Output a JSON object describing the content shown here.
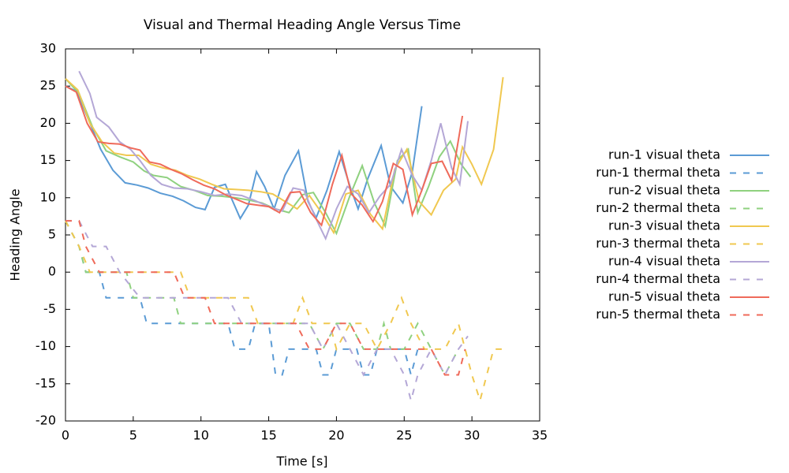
{
  "chart_data": {
    "type": "line",
    "title": "Visual and Thermal Heading Angle Versus Time",
    "x_label": "Time [s]",
    "y_label": "Heading Angle",
    "xlim": [
      0,
      35
    ],
    "xticks": [
      0,
      5,
      10,
      15,
      20,
      25,
      30,
      35
    ],
    "ylim": [
      -20,
      30
    ],
    "yticks": [
      -20,
      -15,
      -10,
      -5,
      0,
      5,
      10,
      15,
      20,
      25,
      30
    ],
    "legend": "right",
    "series": [
      {
        "name": "run-1 visual theta",
        "color": "#5b9bd5",
        "dash": false,
        "x": [
          0,
          0.8,
          1.7,
          2.6,
          3.5,
          4.4,
          5.3,
          6.1,
          7,
          7.9,
          8.7,
          9.6,
          10.3,
          11,
          11.8,
          12.9,
          13.5,
          14.1,
          14.7,
          15.4,
          16.2,
          17.2,
          17.9,
          18.5,
          19.3,
          20.2,
          21,
          21.6,
          22.3,
          23.3,
          24,
          24.9,
          25.6,
          26.3
        ],
        "values": [
          25,
          24.3,
          20.5,
          16.5,
          13.7,
          12,
          11.7,
          11.3,
          10.6,
          10.2,
          9.6,
          8.7,
          8.4,
          11.4,
          11.8,
          7.2,
          9,
          13.5,
          11.5,
          8.5,
          13,
          16.3,
          9.5,
          7.3,
          11,
          16.2,
          11.5,
          8.5,
          12.5,
          17,
          11.5,
          9.3,
          13.5,
          22.3
        ]
      },
      {
        "name": "run-1 thermal theta",
        "color": "#5b9bd5",
        "dash": true,
        "x": [
          0,
          1,
          1.5,
          2.5,
          3,
          5.5,
          6,
          12,
          12.5,
          13.5,
          14,
          15,
          15.5,
          16,
          16.5,
          18.5,
          19,
          19.5,
          20,
          21.5,
          22,
          22.5,
          23,
          25,
          25.5,
          26
        ],
        "values": [
          6.9,
          3.45,
          0,
          0,
          -3.45,
          -3.45,
          -6.9,
          -6.9,
          -10.35,
          -10.35,
          -6.9,
          -6.9,
          -13.8,
          -13.8,
          -10.35,
          -10.35,
          -13.8,
          -13.8,
          -10.35,
          -10.35,
          -13.8,
          -13.8,
          -10.35,
          -10.35,
          -13.8,
          -10.35
        ]
      },
      {
        "name": "run-2 visual theta",
        "color": "#8fd17f",
        "dash": false,
        "x": [
          0,
          1,
          2,
          3,
          4,
          5,
          5.8,
          6.5,
          7.5,
          8.5,
          9.5,
          10.5,
          11.5,
          12.5,
          13.5,
          14.5,
          15.5,
          16.5,
          17.5,
          18.3,
          19.2,
          20,
          21,
          21.9,
          22.8,
          23.6,
          24.5,
          25.3,
          26,
          26.8,
          27.6,
          28.4,
          29.2,
          29.9
        ],
        "values": [
          26,
          24,
          19.5,
          16.3,
          15.5,
          14.8,
          13.6,
          13,
          12.7,
          11.5,
          11,
          10.3,
          10.2,
          10,
          9.7,
          9.3,
          8.5,
          8,
          10.4,
          10.7,
          8,
          5.2,
          10.3,
          14.3,
          9.3,
          6.2,
          15,
          16.5,
          8,
          11.5,
          15.5,
          17.6,
          14.5,
          12.8
        ]
      },
      {
        "name": "run-2 thermal theta",
        "color": "#8fd17f",
        "dash": true,
        "x": [
          0,
          1,
          1.5,
          4.5,
          5,
          8,
          8.5,
          15,
          16,
          18,
          19,
          20,
          21,
          22,
          23,
          23.5,
          24,
          25,
          26,
          27,
          28,
          29
        ],
        "values": [
          6.9,
          3.45,
          0,
          0,
          -3.45,
          -3.45,
          -6.9,
          -6.9,
          -6.9,
          -6.9,
          -10.35,
          -6.9,
          -6.9,
          -10.35,
          -10.35,
          -6.9,
          -10.35,
          -10.35,
          -6.9,
          -10.35,
          -13.8,
          -10.35
        ]
      },
      {
        "name": "run-3 visual theta",
        "color": "#f0c850",
        "dash": false,
        "x": [
          0,
          0.9,
          1.8,
          2.7,
          3.6,
          4.5,
          5.4,
          6.3,
          7.2,
          8.1,
          9,
          9.9,
          10.8,
          11.7,
          12.6,
          13.5,
          14.4,
          15.3,
          16.2,
          17.1,
          18,
          18.9,
          19.8,
          20.7,
          21.6,
          22.5,
          23.4,
          24.3,
          25.2,
          26.1,
          27,
          27.9,
          28.8,
          29.3,
          30,
          30.7,
          31.6,
          32.3
        ],
        "values": [
          26,
          24.5,
          20,
          17.5,
          16,
          15.7,
          15.7,
          14.5,
          14,
          13.7,
          13,
          12.5,
          11.8,
          11.2,
          11.1,
          11,
          10.8,
          10.5,
          9.5,
          8.5,
          10.3,
          8,
          5.3,
          10.5,
          11,
          7.8,
          5.8,
          13.8,
          16.5,
          9.5,
          7.7,
          11,
          12.5,
          16.8,
          14.5,
          11.8,
          16.5,
          26.2
        ]
      },
      {
        "name": "run-3 thermal theta",
        "color": "#f0c850",
        "dash": true,
        "x": [
          0,
          1,
          1.8,
          8,
          8.5,
          9.2,
          13.5,
          14.2,
          16.8,
          17.5,
          18.2,
          19.5,
          20,
          21,
          22,
          23,
          24,
          24.8,
          25.5,
          26.5,
          28,
          29,
          30,
          30.6,
          31.6,
          32.2
        ],
        "values": [
          6.9,
          3.45,
          0,
          0,
          0,
          -3.45,
          -3.45,
          -6.9,
          -6.9,
          -3.45,
          -6.9,
          -6.9,
          -10.35,
          -6.9,
          -6.9,
          -10.35,
          -6.9,
          -3.45,
          -6.9,
          -10.35,
          -10.35,
          -6.9,
          -13.8,
          -17.25,
          -10.35,
          -10.35
        ]
      },
      {
        "name": "run-4 visual theta",
        "color": "#b4a7d6",
        "dash": false,
        "x": [
          1,
          1.8,
          2.3,
          3.2,
          4,
          4.8,
          5.5,
          6.3,
          7.1,
          8,
          9,
          10,
          11,
          12,
          13,
          14,
          15,
          16,
          16.8,
          17.6,
          18.4,
          19.2,
          20,
          20.8,
          21.6,
          22.4,
          23.2,
          24,
          24.8,
          25.6,
          26.3,
          27,
          27.7,
          28.5,
          29.1,
          29.7
        ],
        "values": [
          27,
          24,
          20.8,
          19.5,
          17.5,
          16.5,
          15,
          13,
          11.8,
          11.3,
          11.2,
          10.8,
          10.3,
          10.5,
          10.3,
          9.6,
          8.8,
          8.2,
          11.3,
          11,
          7.5,
          4.5,
          8.5,
          11.5,
          10.5,
          8,
          10.2,
          11.8,
          16.5,
          13,
          11,
          15,
          20,
          14,
          11.8,
          20.3
        ]
      },
      {
        "name": "run-4 thermal theta",
        "color": "#b4a7d6",
        "dash": true,
        "x": [
          0,
          1,
          2,
          3,
          4,
          5.5,
          9,
          10,
          12,
          13,
          17,
          18,
          19,
          20,
          21,
          22,
          23,
          24,
          25,
          25.5,
          26,
          27,
          28,
          29,
          29.7
        ],
        "values": [
          6.9,
          6.9,
          3.45,
          3.45,
          0,
          -3.45,
          -3.45,
          -3.45,
          -3.45,
          -6.9,
          -6.9,
          -6.9,
          -10.35,
          -6.9,
          -10.35,
          -13.8,
          -10.35,
          -10.35,
          -13.8,
          -17.25,
          -13.8,
          -10.35,
          -13.8,
          -10.35,
          -8.6
        ]
      },
      {
        "name": "run-5 visual theta",
        "color": "#ef6a5a",
        "dash": false,
        "x": [
          0,
          0.8,
          1.6,
          2.4,
          3.2,
          4,
          4.8,
          5.5,
          6.2,
          7,
          7.8,
          8.6,
          9.4,
          10.2,
          11,
          11.8,
          12.6,
          13.4,
          14.2,
          15,
          15.8,
          16.6,
          17.3,
          18.1,
          18.9,
          19.7,
          20.4,
          21.1,
          21.9,
          22.7,
          23.4,
          24.2,
          24.9,
          25.6,
          26.3,
          27,
          27.8,
          28.5,
          29.3
        ],
        "values": [
          25,
          24.2,
          20,
          17.5,
          17.3,
          17.2,
          16.7,
          16.4,
          14.8,
          14.5,
          13.8,
          13.2,
          12.4,
          11.7,
          11.2,
          10.4,
          9.8,
          9.2,
          9,
          8.8,
          8,
          10.7,
          10.8,
          8,
          6.3,
          11.8,
          15.7,
          10.5,
          9,
          6.8,
          9.5,
          14.6,
          13.8,
          7.7,
          11,
          14.6,
          14.9,
          12.3,
          21
        ]
      },
      {
        "name": "run-5 thermal theta",
        "color": "#ef6a5a",
        "dash": true,
        "x": [
          0,
          1,
          1.5,
          2.5,
          8,
          8.8,
          10.3,
          11,
          14,
          15,
          17,
          18,
          19,
          20,
          21,
          22,
          23,
          24,
          25,
          26,
          27,
          28,
          29,
          29.5
        ],
        "values": [
          6.9,
          6.9,
          3.45,
          0,
          0,
          -3.45,
          -3.45,
          -6.9,
          -6.9,
          -6.9,
          -6.9,
          -10.35,
          -10.35,
          -6.9,
          -6.9,
          -10.35,
          -10.35,
          -10.35,
          -10.35,
          -10.35,
          -10.35,
          -13.8,
          -13.8,
          -10.35
        ]
      }
    ]
  }
}
